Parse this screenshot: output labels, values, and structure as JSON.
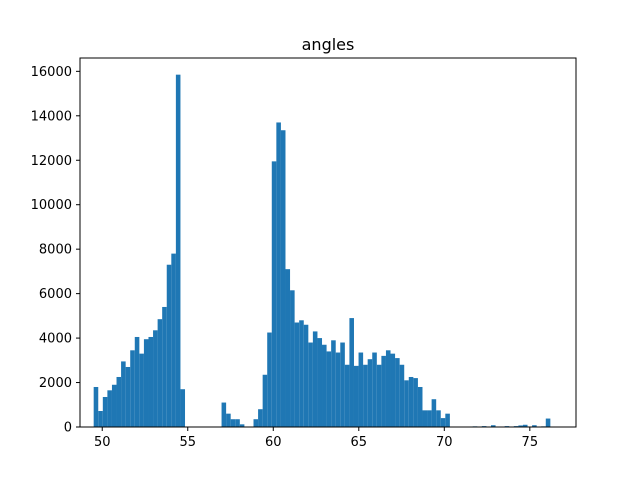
{
  "chart_data": {
    "type": "bar",
    "title": "angles",
    "xlabel": "",
    "ylabel": "",
    "xlim": [
      48.7,
      77.7
    ],
    "ylim": [
      0,
      16600
    ],
    "x_ticks": [
      50,
      55,
      60,
      65,
      70,
      75
    ],
    "y_ticks": [
      0,
      2000,
      4000,
      6000,
      8000,
      10000,
      12000,
      14000,
      16000
    ],
    "bin_start": 49.5,
    "bin_width": 0.267,
    "values": [
      1800,
      720,
      1350,
      1650,
      1900,
      2250,
      2950,
      2700,
      3450,
      4050,
      3300,
      3950,
      4050,
      4350,
      4850,
      5400,
      7300,
      7800,
      15850,
      1700,
      0,
      0,
      0,
      0,
      0,
      0,
      0,
      0,
      1100,
      600,
      350,
      350,
      120,
      0,
      0,
      350,
      800,
      2350,
      4250,
      11950,
      13700,
      13350,
      7100,
      6150,
      4700,
      4800,
      4600,
      3800,
      4300,
      4000,
      3700,
      3400,
      3900,
      3350,
      3800,
      2800,
      4900,
      2750,
      3350,
      2800,
      3050,
      3350,
      2800,
      3200,
      3450,
      3300,
      3100,
      2800,
      2100,
      2250,
      2200,
      1800,
      750,
      750,
      1250,
      750,
      400,
      600,
      0,
      0,
      0,
      0,
      0,
      30,
      0,
      40,
      0,
      80,
      0,
      20,
      40,
      0,
      40,
      70,
      100,
      0,
      80,
      0,
      30,
      380
    ],
    "colors": {
      "bar": "#1f77b4"
    }
  }
}
